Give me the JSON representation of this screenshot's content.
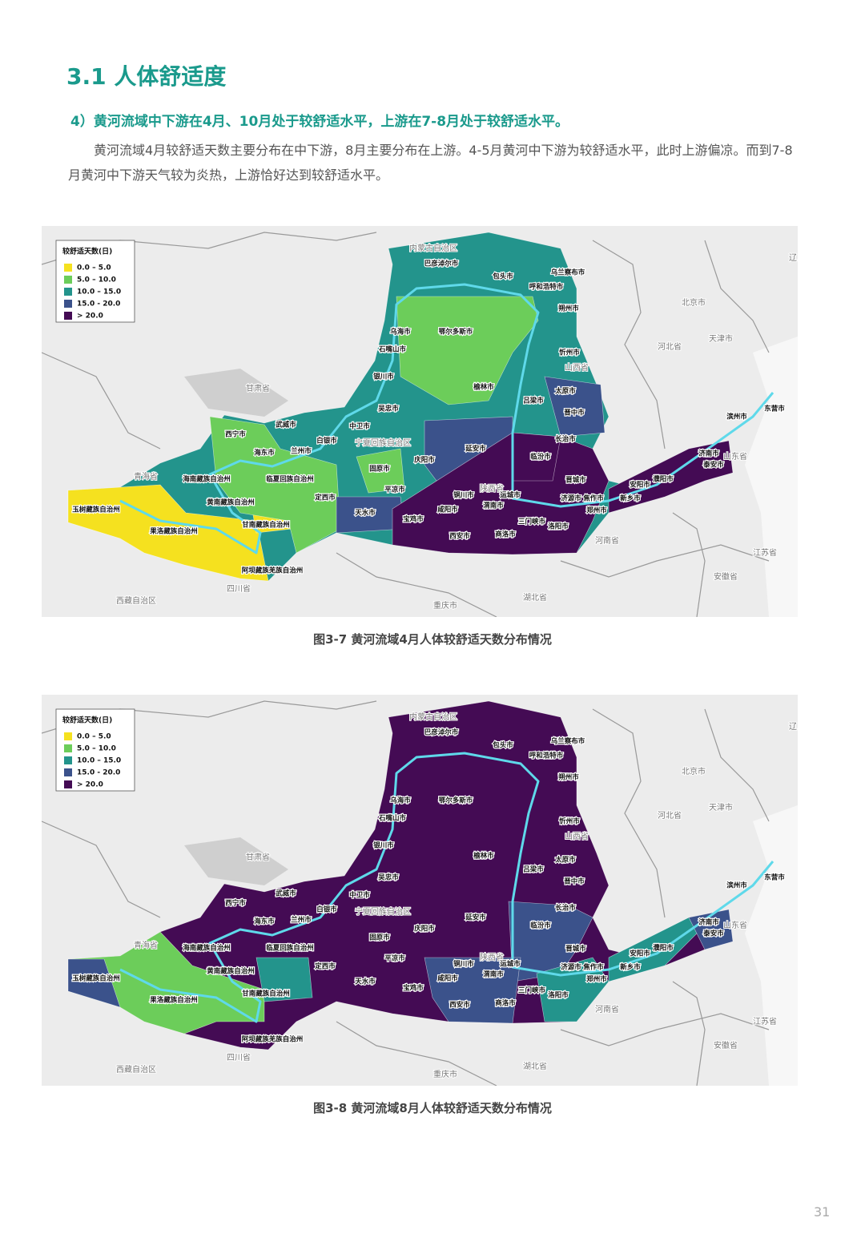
{
  "heading": "3.1 人体舒适度",
  "subheading": "4）黄河流域中下游在4月、10月处于较舒适水平，上游在7-8月处于较舒适水平。",
  "paragraph": "黄河流域4月较舒适天数主要分布在中下游，8月主要分布在上游。4-5月黄河中下游为较舒适水平，此时上游偏凉。而到7-8月黄河中下游天气较为炎热，上游恰好达到较舒适水平。",
  "maps": [
    {
      "caption": "图3-7 黄河流域4月人体较舒适天数分布情况",
      "legend": {
        "title": "较舒适天数(日)",
        "items": [
          {
            "label": "0.0 – 5.0",
            "color": "#f5e11f"
          },
          {
            "label": "5.0 – 10.0",
            "color": "#6ccd5a"
          },
          {
            "label": "10.0 – 15.0",
            "color": "#23948c"
          },
          {
            "label": "15.0 - 20.0",
            "color": "#3b528b"
          },
          {
            "label": "> 20.0",
            "color": "#440b54"
          }
        ]
      }
    },
    {
      "caption": "图3-8 黄河流域8月人体较舒适天数分布情况",
      "legend": {
        "title": "较舒适天数(日)",
        "items": [
          {
            "label": "0.0 – 5.0",
            "color": "#f5e11f"
          },
          {
            "label": "5.0 – 10.0",
            "color": "#6ccd5a"
          },
          {
            "label": "10.0 – 15.0",
            "color": "#23948c"
          },
          {
            "label": "15.0 - 20.0",
            "color": "#3b528b"
          },
          {
            "label": "> 20.0",
            "color": "#440b54"
          }
        ]
      }
    }
  ],
  "province_labels": [
    "内蒙古自治区",
    "北京市",
    "河北省",
    "天津市",
    "山西省",
    "甘肃省",
    "青海省",
    "宁夏回族自治区",
    "陕西省",
    "山东省",
    "河南省",
    "江苏省",
    "安徽省",
    "湖北省",
    "重庆市",
    "四川省",
    "西藏自治区",
    "辽"
  ],
  "city_labels": [
    "巴彦淖尔市",
    "包头市",
    "乌兰察布市",
    "呼和浩特市",
    "朔州市",
    "乌海市",
    "鄂尔多斯市",
    "石嘴山市",
    "忻州市",
    "银川市",
    "榆林市",
    "太原市",
    "吕梁市",
    "吴忠市",
    "晋中市",
    "武威市",
    "中卫市",
    "长治市",
    "西宁市",
    "白银市",
    "延安市",
    "海东市",
    "兰州市",
    "固原市",
    "庆阳市",
    "临汾市",
    "海南藏族自治州",
    "临夏回族自治州",
    "平凉市",
    "晋城市",
    "黄南藏族自治州",
    "定西市",
    "铜川市",
    "运城市",
    "济源市",
    "焦作市",
    "郑州市",
    "天水市",
    "渭南市",
    "咸阳市",
    "宝鸡市",
    "甘南藏族自治州",
    "西安市",
    "商洛市",
    "三门峡市",
    "洛阳市",
    "玉树藏族自治州",
    "果洛藏族自治州",
    "阿坝藏族羌族自治州",
    "新乡市",
    "安阳市",
    "濮阳市",
    "泰安市",
    "济南市",
    "滨州市",
    "东营市"
  ],
  "page_number": "31"
}
